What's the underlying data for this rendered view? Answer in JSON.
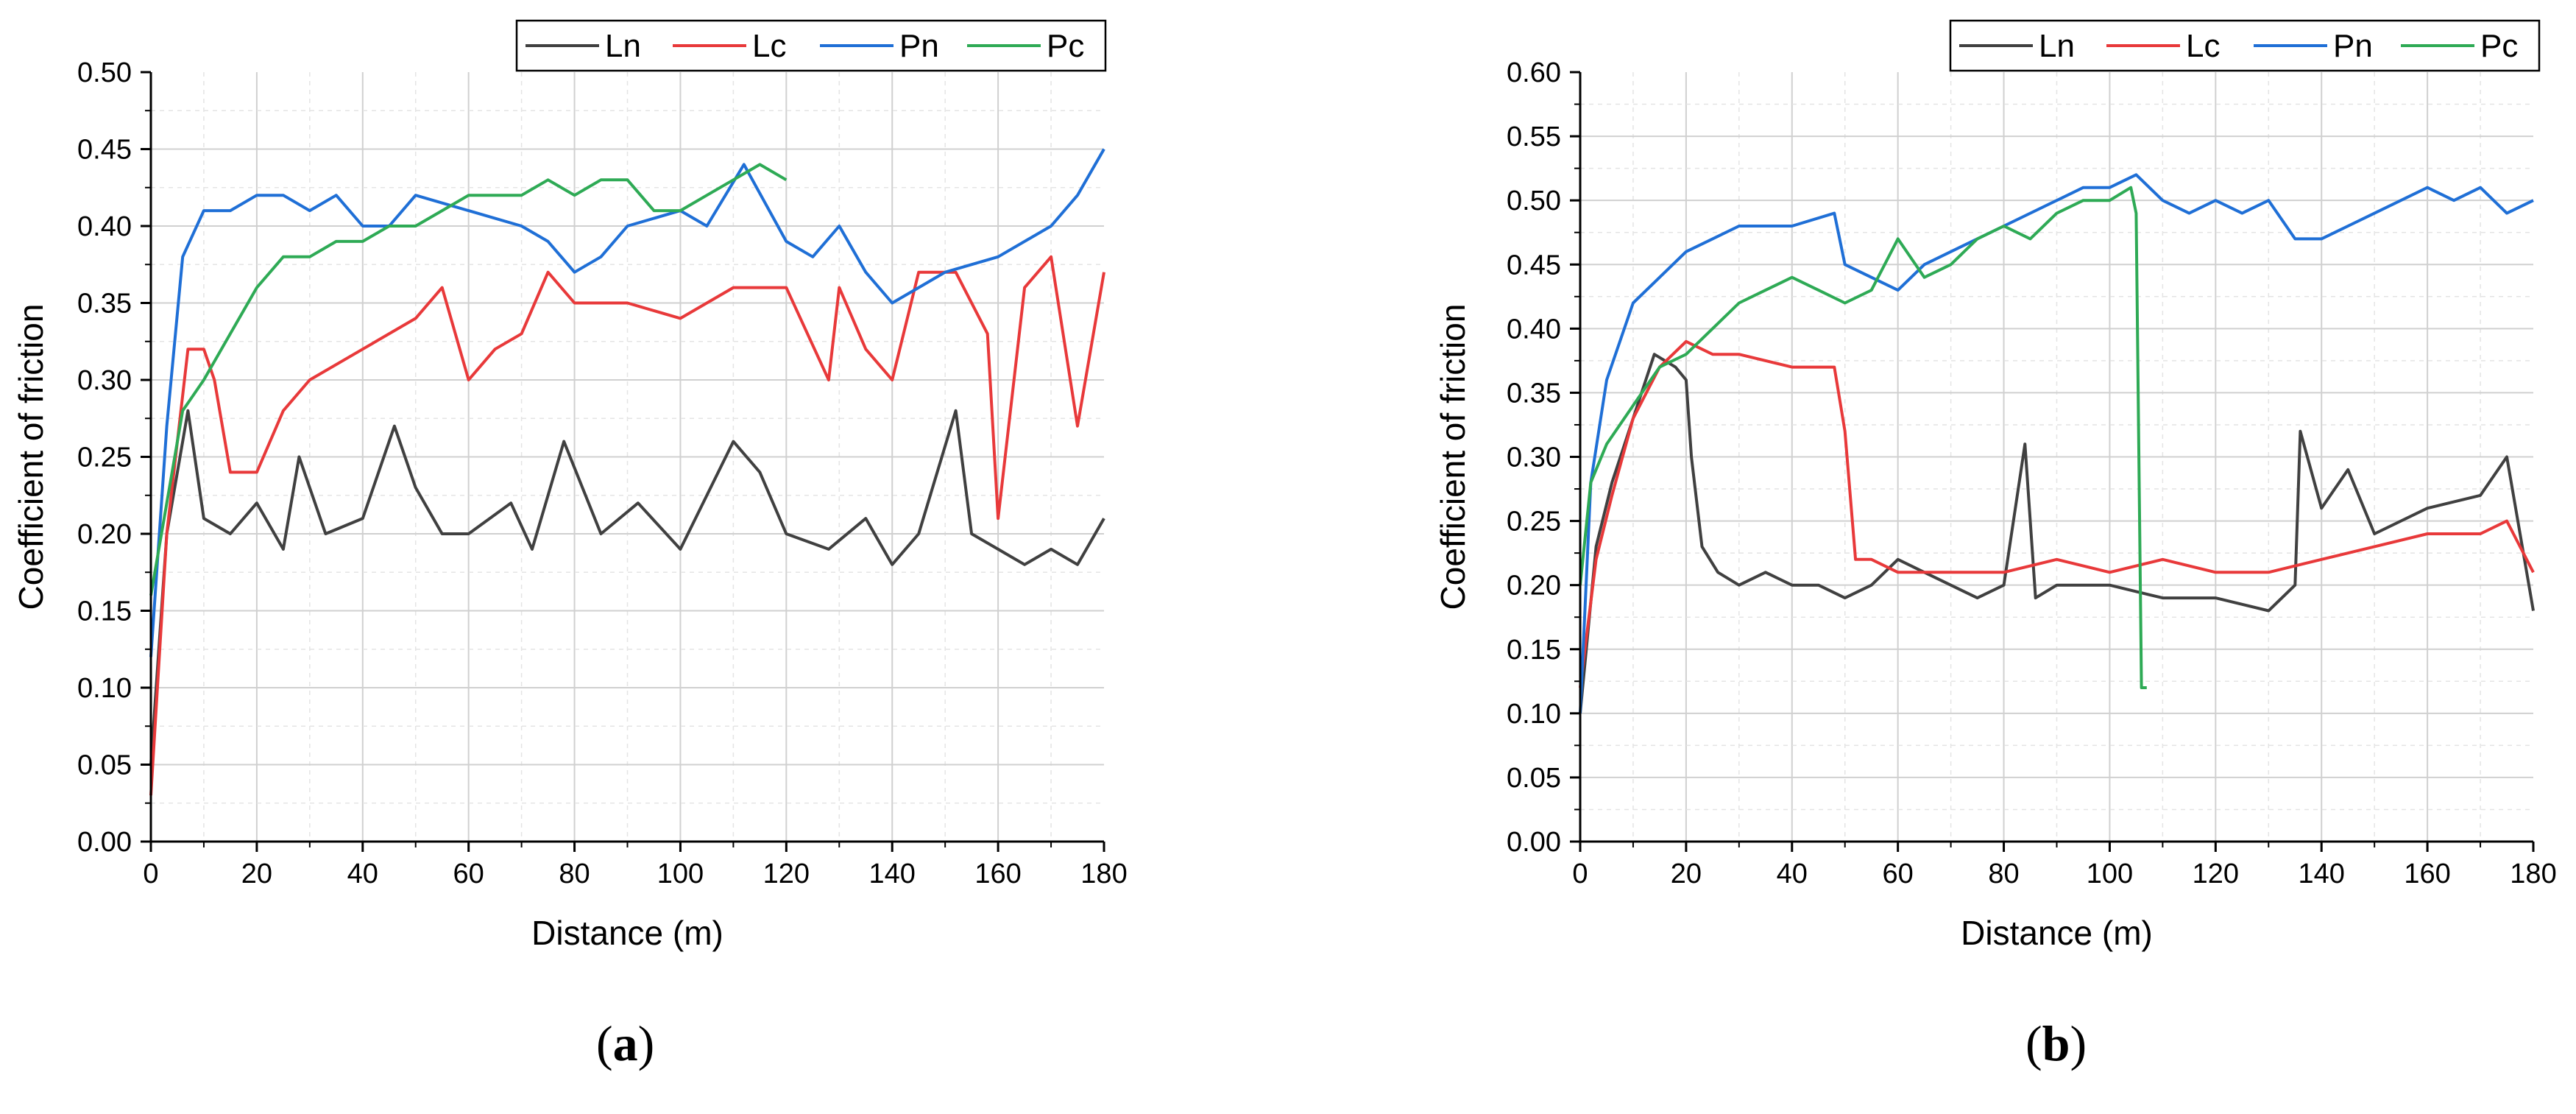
{
  "chart_data": [
    {
      "type": "line",
      "panel_label": "a",
      "xlabel": "Distance (m)",
      "ylabel": "Coefficient of friction",
      "xlim": [
        0,
        180
      ],
      "ylim": [
        0,
        0.5
      ],
      "xticks": [
        "0",
        "20",
        "40",
        "60",
        "80",
        "100",
        "120",
        "140",
        "160",
        "180"
      ],
      "yticks": [
        "0.00",
        "0.05",
        "0.10",
        "0.15",
        "0.20",
        "0.25",
        "0.30",
        "0.35",
        "0.40",
        "0.45",
        "0.50"
      ],
      "grid": true,
      "legend": "top-right",
      "series": [
        {
          "name": "Ln",
          "color": "#404040",
          "x": [
            0,
            3,
            7,
            10,
            15,
            20,
            25,
            28,
            33,
            40,
            46,
            50,
            55,
            60,
            68,
            72,
            78,
            85,
            92,
            100,
            110,
            115,
            120,
            128,
            135,
            140,
            145,
            152,
            155,
            160,
            165,
            170,
            175,
            180
          ],
          "y": [
            0.05,
            0.2,
            0.28,
            0.21,
            0.2,
            0.22,
            0.19,
            0.25,
            0.2,
            0.21,
            0.27,
            0.23,
            0.2,
            0.2,
            0.22,
            0.19,
            0.26,
            0.2,
            0.22,
            0.19,
            0.26,
            0.24,
            0.2,
            0.19,
            0.21,
            0.18,
            0.2,
            0.28,
            0.2,
            0.19,
            0.18,
            0.19,
            0.18,
            0.21
          ]
        },
        {
          "name": "Lc",
          "color": "#e8393a",
          "x": [
            0,
            3,
            7,
            10,
            12,
            15,
            20,
            25,
            30,
            40,
            50,
            55,
            60,
            65,
            70,
            75,
            80,
            90,
            100,
            110,
            120,
            128,
            130,
            135,
            140,
            145,
            152,
            158,
            160,
            165,
            170,
            175,
            180
          ],
          "y": [
            0.03,
            0.2,
            0.32,
            0.32,
            0.3,
            0.24,
            0.24,
            0.28,
            0.3,
            0.32,
            0.34,
            0.36,
            0.3,
            0.32,
            0.33,
            0.37,
            0.35,
            0.35,
            0.34,
            0.36,
            0.36,
            0.3,
            0.36,
            0.32,
            0.3,
            0.37,
            0.37,
            0.33,
            0.21,
            0.36,
            0.38,
            0.27,
            0.37
          ]
        },
        {
          "name": "Pn",
          "color": "#1f6fd6",
          "x": [
            0,
            3,
            6,
            10,
            15,
            20,
            25,
            30,
            35,
            40,
            45,
            50,
            60,
            70,
            75,
            80,
            85,
            90,
            100,
            105,
            112,
            120,
            125,
            130,
            135,
            140,
            145,
            150,
            160,
            170,
            175,
            180
          ],
          "y": [
            0.12,
            0.27,
            0.38,
            0.41,
            0.41,
            0.42,
            0.42,
            0.41,
            0.42,
            0.4,
            0.4,
            0.42,
            0.41,
            0.4,
            0.39,
            0.37,
            0.38,
            0.4,
            0.41,
            0.4,
            0.44,
            0.39,
            0.38,
            0.4,
            0.37,
            0.35,
            0.36,
            0.37,
            0.38,
            0.4,
            0.42,
            0.45
          ]
        },
        {
          "name": "Pc",
          "color": "#2eaa55",
          "x": [
            0,
            3,
            6,
            10,
            15,
            20,
            25,
            30,
            35,
            40,
            45,
            50,
            55,
            60,
            65,
            70,
            75,
            80,
            85,
            90,
            95,
            100,
            105,
            110,
            115,
            120
          ],
          "y": [
            0.16,
            0.22,
            0.28,
            0.3,
            0.33,
            0.36,
            0.38,
            0.38,
            0.39,
            0.39,
            0.4,
            0.4,
            0.41,
            0.42,
            0.42,
            0.42,
            0.43,
            0.42,
            0.43,
            0.43,
            0.41,
            0.41,
            0.42,
            0.43,
            0.44,
            0.43
          ]
        }
      ]
    },
    {
      "type": "line",
      "panel_label": "b",
      "xlabel": "Distance (m)",
      "ylabel": "Coefficient of friction",
      "xlim": [
        0,
        180
      ],
      "ylim": [
        0,
        0.6
      ],
      "xticks": [
        "0",
        "20",
        "40",
        "60",
        "80",
        "100",
        "120",
        "140",
        "160",
        "180"
      ],
      "yticks": [
        "0.00",
        "0.05",
        "0.10",
        "0.15",
        "0.20",
        "0.25",
        "0.30",
        "0.35",
        "0.40",
        "0.45",
        "0.50",
        "0.55",
        "0.60"
      ],
      "grid": true,
      "legend": "top-right",
      "series": [
        {
          "name": "Ln",
          "color": "#404040",
          "x": [
            0,
            3,
            6,
            10,
            14,
            18,
            20,
            21,
            23,
            26,
            30,
            35,
            40,
            45,
            50,
            55,
            60,
            65,
            70,
            75,
            80,
            84,
            86,
            90,
            100,
            110,
            120,
            130,
            135,
            136,
            140,
            145,
            150,
            160,
            170,
            175,
            180
          ],
          "y": [
            0.1,
            0.23,
            0.28,
            0.33,
            0.38,
            0.37,
            0.36,
            0.3,
            0.23,
            0.21,
            0.2,
            0.21,
            0.2,
            0.2,
            0.19,
            0.2,
            0.22,
            0.21,
            0.2,
            0.19,
            0.2,
            0.31,
            0.19,
            0.2,
            0.2,
            0.19,
            0.19,
            0.18,
            0.2,
            0.32,
            0.26,
            0.29,
            0.24,
            0.26,
            0.27,
            0.3,
            0.18
          ]
        },
        {
          "name": "Lc",
          "color": "#e8393a",
          "x": [
            0,
            3,
            6,
            10,
            15,
            20,
            25,
            30,
            40,
            48,
            50,
            52,
            55,
            60,
            70,
            80,
            90,
            100,
            110,
            120,
            130,
            140,
            150,
            160,
            170,
            175,
            180
          ],
          "y": [
            0.12,
            0.22,
            0.27,
            0.33,
            0.37,
            0.39,
            0.38,
            0.38,
            0.37,
            0.37,
            0.32,
            0.22,
            0.22,
            0.21,
            0.21,
            0.21,
            0.22,
            0.21,
            0.22,
            0.21,
            0.21,
            0.22,
            0.23,
            0.24,
            0.24,
            0.25,
            0.21
          ]
        },
        {
          "name": "Pn",
          "color": "#1f6fd6",
          "x": [
            0,
            2,
            5,
            10,
            15,
            20,
            25,
            30,
            40,
            48,
            50,
            55,
            60,
            65,
            70,
            80,
            90,
            95,
            100,
            105,
            110,
            115,
            120,
            125,
            130,
            135,
            140,
            145,
            150,
            160,
            165,
            170,
            175,
            180
          ],
          "y": [
            0.1,
            0.28,
            0.36,
            0.42,
            0.44,
            0.46,
            0.47,
            0.48,
            0.48,
            0.49,
            0.45,
            0.44,
            0.43,
            0.45,
            0.46,
            0.48,
            0.5,
            0.51,
            0.51,
            0.52,
            0.5,
            0.49,
            0.5,
            0.49,
            0.5,
            0.47,
            0.47,
            0.48,
            0.49,
            0.51,
            0.5,
            0.51,
            0.49,
            0.5
          ]
        },
        {
          "name": "Pc",
          "color": "#2eaa55",
          "x": [
            0,
            2,
            5,
            10,
            15,
            20,
            25,
            30,
            35,
            40,
            45,
            50,
            55,
            60,
            65,
            70,
            75,
            80,
            85,
            90,
            95,
            100,
            104,
            105,
            106,
            107
          ],
          "y": [
            0.2,
            0.28,
            0.31,
            0.34,
            0.37,
            0.38,
            0.4,
            0.42,
            0.43,
            0.44,
            0.43,
            0.42,
            0.43,
            0.47,
            0.44,
            0.45,
            0.47,
            0.48,
            0.47,
            0.49,
            0.5,
            0.5,
            0.51,
            0.49,
            0.12,
            0.12
          ]
        }
      ]
    }
  ]
}
